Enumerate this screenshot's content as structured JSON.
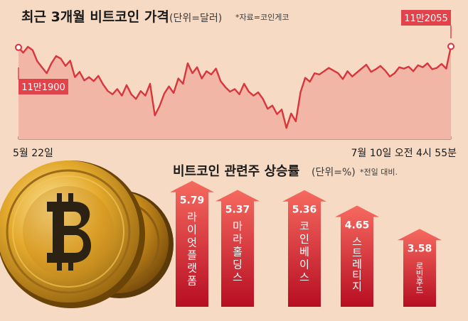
{
  "chart_data": [
    {
      "type": "area",
      "title": "최근 3개월 비트코인 가격",
      "unit_note": "(단위=달러)",
      "source_note": "*자료=코인게코",
      "x_start_label": "5월 22일",
      "x_end_label": "7월 10일 오전 4시 55분",
      "start_value_label": "11만1900",
      "end_value_label": "11만2055",
      "start_value": 111900,
      "end_value": 112055,
      "ylim": [
        98000,
        115000
      ],
      "values": [
        111900,
        111100,
        112000,
        111500,
        109800,
        108900,
        108000,
        109500,
        110600,
        110200,
        109100,
        109900,
        107400,
        108200,
        106900,
        107400,
        106800,
        107600,
        106300,
        105300,
        104800,
        105600,
        104600,
        106200,
        104800,
        104100,
        105300,
        104600,
        106400,
        101600,
        103000,
        104900,
        106000,
        105000,
        107200,
        106400,
        109500,
        108000,
        108900,
        107200,
        108300,
        107800,
        108700,
        106800,
        105900,
        105200,
        105600,
        104800,
        106400,
        105200,
        104600,
        105100,
        104100,
        102600,
        103100,
        101800,
        102500,
        99700,
        101900,
        100700,
        105100,
        107300,
        106700,
        108000,
        107800,
        108300,
        108800,
        108400,
        108000,
        107100,
        108300,
        107500,
        108100,
        108700,
        109300,
        108200,
        108600,
        109100,
        108400,
        107500,
        108000,
        108900,
        108700,
        109000,
        108300,
        109200,
        108900,
        109500,
        108600,
        108800,
        109400,
        108700,
        112055
      ],
      "colors": {
        "line": "#d8353d",
        "area": "#f2b6a6",
        "background": "#f6dac3"
      }
    },
    {
      "type": "bar",
      "title": "비트코인 관련주 상승률",
      "unit_note": "(단위=%)",
      "note": "*전일 대비.",
      "categories": [
        "라이엇플랫폼",
        "마라홀딩스",
        "코인베이스",
        "스트레티지",
        "로빈후드"
      ],
      "values": [
        5.79,
        5.37,
        5.36,
        4.65,
        3.58
      ],
      "value_labels": [
        "5.79",
        "5.37",
        "5.36",
        "4.65",
        "3.58"
      ],
      "colors": {
        "arrow_top": "#f25f56",
        "arrow_bottom": "#b70e22",
        "text": "#ffffff"
      }
    }
  ],
  "illustration": {
    "name": "bitcoin-coins",
    "colors": {
      "gold": "#d9a426",
      "dark": "#3a2a10"
    }
  }
}
